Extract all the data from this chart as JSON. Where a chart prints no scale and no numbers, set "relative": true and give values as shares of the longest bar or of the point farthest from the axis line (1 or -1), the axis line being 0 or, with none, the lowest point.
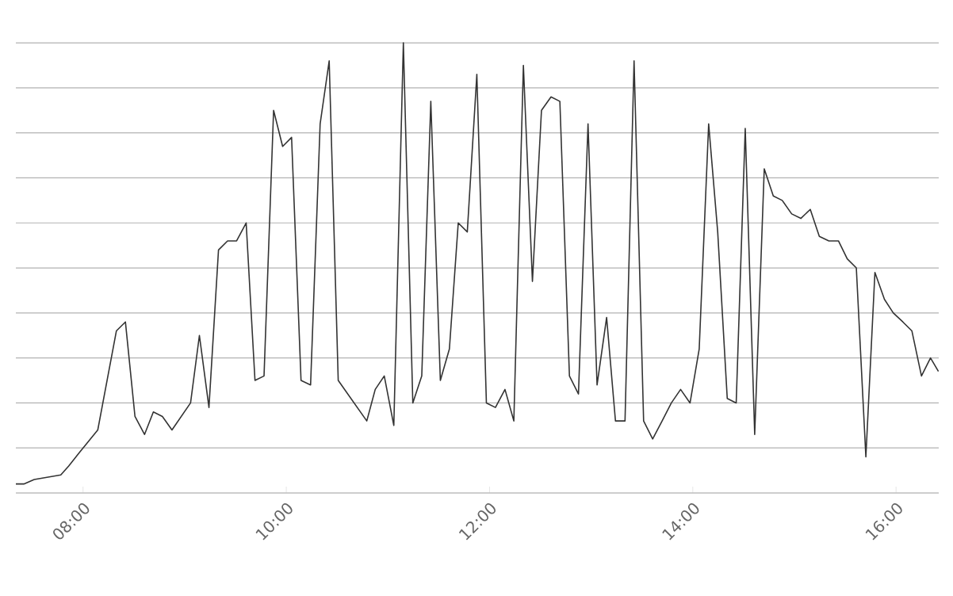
{
  "chart_data": {
    "type": "line",
    "relative": true,
    "color": "#333333",
    "grid": "y",
    "xlim": [
      7.339,
      16.42
    ],
    "xticks": [
      {
        "value": 8,
        "label": "08:00"
      },
      {
        "value": 10,
        "label": "10:00"
      },
      {
        "value": 12,
        "label": "12:00"
      },
      {
        "value": 14,
        "label": "14:00"
      },
      {
        "value": 16,
        "label": "16:00"
      }
    ],
    "x": [
      7.339,
      7.417,
      7.52,
      7.781,
      7.859,
      7.964,
      8.145,
      8.328,
      8.417,
      8.511,
      8.605,
      8.692,
      8.781,
      8.875,
      9.058,
      9.145,
      9.239,
      9.333,
      9.422,
      9.511,
      9.605,
      9.692,
      9.781,
      9.875,
      9.964,
      10.052,
      10.145,
      10.239,
      10.333,
      10.422,
      10.511,
      10.792,
      10.875,
      10.964,
      11.058,
      11.152,
      11.245,
      11.333,
      11.422,
      11.516,
      11.605,
      11.692,
      11.781,
      11.875,
      11.969,
      12.058,
      12.152,
      12.239,
      12.333,
      12.422,
      12.511,
      12.605,
      12.692,
      12.786,
      12.875,
      12.969,
      13.058,
      13.152,
      13.239,
      13.333,
      13.422,
      13.516,
      13.605,
      13.698,
      13.789,
      13.88,
      13.973,
      14.063,
      14.156,
      14.245,
      14.339,
      14.427,
      14.516,
      14.609,
      14.703,
      14.792,
      14.88,
      14.973,
      15.063,
      15.156,
      15.245,
      15.339,
      15.433,
      15.52,
      15.609,
      15.703,
      15.792,
      15.886,
      15.973,
      16.067,
      16.156,
      16.25,
      16.339,
      16.417
    ],
    "values": [
      0.02,
      0.02,
      0.03,
      0.04,
      0.06,
      0.09,
      0.14,
      0.36,
      0.38,
      0.17,
      0.13,
      0.18,
      0.17,
      0.14,
      0.2,
      0.35,
      0.19,
      0.54,
      0.56,
      0.56,
      0.6,
      0.25,
      0.26,
      0.85,
      0.77,
      0.79,
      0.25,
      0.24,
      0.82,
      0.96,
      0.25,
      0.16,
      0.23,
      0.26,
      0.15,
      1.0,
      0.2,
      0.26,
      0.87,
      0.25,
      0.32,
      0.6,
      0.58,
      0.93,
      0.2,
      0.19,
      0.23,
      0.16,
      0.95,
      0.47,
      0.85,
      0.88,
      0.87,
      0.26,
      0.22,
      0.82,
      0.24,
      0.39,
      0.16,
      0.16,
      0.96,
      0.16,
      0.12,
      0.16,
      0.2,
      0.23,
      0.2,
      0.32,
      0.82,
      0.58,
      0.21,
      0.2,
      0.81,
      0.13,
      0.72,
      0.66,
      0.65,
      0.62,
      0.61,
      0.63,
      0.57,
      0.56,
      0.56,
      0.52,
      0.5,
      0.08,
      0.49,
      0.43,
      0.4,
      0.38,
      0.36,
      0.26,
      0.3,
      0.27
    ]
  }
}
